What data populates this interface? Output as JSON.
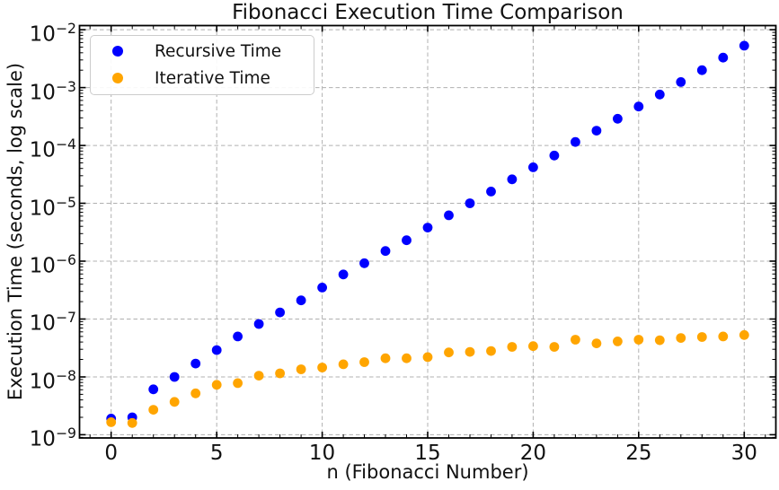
{
  "chart_data": {
    "type": "scatter",
    "title": "Fibonacci Execution Time Comparison",
    "xlabel": "n (Fibonacci Number)",
    "ylabel": "Execution Time (seconds, log scale)",
    "x": [
      0,
      1,
      2,
      3,
      4,
      5,
      6,
      7,
      8,
      9,
      10,
      11,
      12,
      13,
      14,
      15,
      16,
      17,
      18,
      19,
      20,
      21,
      22,
      23,
      24,
      25,
      26,
      27,
      28,
      29,
      30
    ],
    "series": [
      {
        "name": "Recursive Time",
        "color": "#0000ff",
        "values": [
          1.9e-09,
          2e-09,
          6.1e-09,
          1e-08,
          1.7e-08,
          2.9e-08,
          5e-08,
          8.2e-08,
          1.3e-07,
          2.1e-07,
          3.5e-07,
          5.9e-07,
          9.2e-07,
          1.5e-06,
          2.3e-06,
          3.8e-06,
          6.2e-06,
          1e-05,
          1.6e-05,
          2.6e-05,
          4.2e-05,
          6.7e-05,
          0.000115,
          0.00018,
          0.00029,
          0.00047,
          0.00076,
          0.00125,
          0.002,
          0.0033,
          0.0053
        ]
      },
      {
        "name": "Iterative Time",
        "color": "#ffa500",
        "values": [
          1.65e-09,
          1.6e-09,
          2.7e-09,
          3.7e-09,
          5.2e-09,
          7.3e-09,
          7.8e-09,
          1.05e-08,
          1.15e-08,
          1.35e-08,
          1.45e-08,
          1.65e-08,
          1.8e-08,
          2.1e-08,
          2.1e-08,
          2.2e-08,
          2.65e-08,
          2.7e-08,
          2.8e-08,
          3.3e-08,
          3.4e-08,
          3.3e-08,
          4.4e-08,
          3.8e-08,
          4.1e-08,
          4.4e-08,
          4.3e-08,
          4.7e-08,
          4.9e-08,
          5e-08,
          5.3e-08
        ]
      }
    ],
    "yscale": "log",
    "xlim": [
      -1.5,
      31.5
    ],
    "ylim": [
      8.8e-10,
      0.0118
    ],
    "xticks": [
      0,
      5,
      10,
      15,
      20,
      25,
      30
    ],
    "ytick_exponents": [
      -2,
      -3,
      -4,
      -5,
      -6,
      -7,
      -8,
      -9
    ],
    "grid": "dashed-major",
    "grid_color": "#b0b0b0",
    "legend_position": "upper-left",
    "marker": "circle"
  }
}
